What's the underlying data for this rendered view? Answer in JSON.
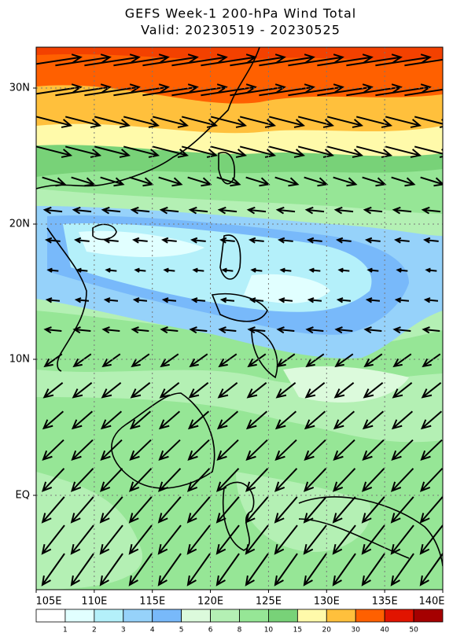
{
  "map": {
    "title": "GEFS Week-1 200-hPa Wind Total",
    "subtitle": "Valid: 20230519 - 20230525",
    "x_labels": [
      "105E",
      "110E",
      "115E",
      "120E",
      "125E",
      "130E",
      "135E",
      "140E"
    ],
    "y_labels": [
      "30N",
      "20N",
      "10N",
      "EQ"
    ],
    "colorbar": {
      "labels": [
        1,
        2,
        3,
        4,
        5,
        6,
        8,
        10,
        15,
        20,
        30,
        40,
        50
      ],
      "colors": [
        "#ffffff",
        "#e1ffff",
        "#b4f0fa",
        "#96d2fa",
        "#78b9fa",
        "#dcfadc",
        "#b4f0b4",
        "#96e696",
        "#78d278",
        "#fffaaa",
        "#ffc03c",
        "#ff6000",
        "#e11400",
        "#a50000"
      ]
    }
  }
}
